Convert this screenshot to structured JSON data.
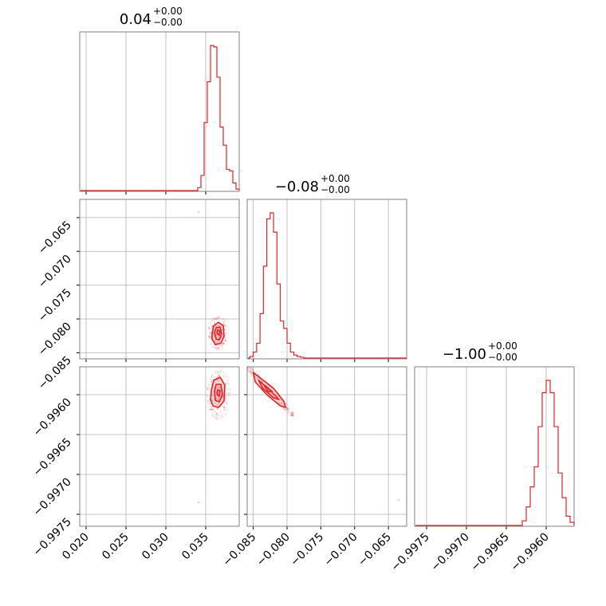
{
  "chart_data": {
    "type": "corner",
    "line_color": "#d62728",
    "fill_color": "#f29a9b",
    "grid": true,
    "parameters": [
      {
        "title": "0.04",
        "err_plus": "+0.00",
        "err_minus": "−0.00",
        "range": [
          0.0192,
          0.0392
        ],
        "ticks": [
          0.02,
          0.025,
          0.03,
          0.035
        ],
        "tick_labels": [
          "0.020",
          "0.025",
          "0.030",
          "0.035"
        ]
      },
      {
        "title": "−0.08",
        "err_plus": "+0.00",
        "err_minus": "−0.00",
        "range": [
          -0.0859,
          -0.0623
        ],
        "ticks": [
          -0.085,
          -0.08,
          -0.075,
          -0.07,
          -0.065
        ],
        "tick_labels": [
          "−0.085",
          "−0.080",
          "−0.075",
          "−0.070",
          "−0.065"
        ]
      },
      {
        "title": "−1.00",
        "err_plus": "+0.00",
        "err_minus": "−0.00",
        "range": [
          -0.99765,
          -0.99565
        ],
        "ticks": [
          -0.9975,
          -0.997,
          -0.9965,
          -0.996
        ],
        "tick_labels": [
          "−0.9975",
          "−0.9970",
          "−0.9965",
          "−0.9960"
        ]
      }
    ],
    "histograms": [
      {
        "param": 0,
        "bin_edges": [
          0.034,
          0.0344,
          0.0348,
          0.0352,
          0.0356,
          0.036,
          0.0364,
          0.0368,
          0.0372,
          0.0376,
          0.038,
          0.0384,
          0.0388,
          0.0392
        ],
        "counts": [
          0.02,
          0.1,
          0.45,
          0.72,
          0.96,
          0.95,
          0.75,
          0.42,
          0.3,
          0.14,
          0.13,
          0.05,
          0.01
        ]
      },
      {
        "param": 1,
        "bin_edges": [
          -0.0855,
          -0.085,
          -0.0845,
          -0.084,
          -0.0835,
          -0.083,
          -0.0825,
          -0.082,
          -0.0815,
          -0.081,
          -0.0805,
          -0.08,
          -0.0795,
          -0.079,
          -0.0785,
          -0.078,
          -0.0775,
          -0.0623
        ],
        "counts": [
          0.01,
          0.04,
          0.1,
          0.3,
          0.62,
          0.94,
          0.98,
          0.85,
          0.5,
          0.25,
          0.2,
          0.1,
          0.04,
          0.02,
          0.01,
          0.005,
          0.0
        ]
      },
      {
        "param": 2,
        "bin_edges": [
          -0.9963,
          -0.99625,
          -0.9962,
          -0.99615,
          -0.9961,
          -0.99605,
          -0.996,
          -0.99595,
          -0.9959,
          -0.99585,
          -0.9958,
          -0.99575,
          -0.9957,
          -0.99565
        ],
        "counts": [
          0.03,
          0.12,
          0.25,
          0.38,
          0.64,
          0.86,
          0.94,
          0.86,
          0.64,
          0.34,
          0.18,
          0.06,
          0.02
        ]
      }
    ],
    "scatter_panels": [
      {
        "x_param": 0,
        "y_param": 1,
        "center": [
          0.0365,
          -0.082
        ],
        "outliers": [
          [
            0.0341,
            -0.0642
          ]
        ],
        "contours": [
          [
            [
              0.0358,
              -0.0822
            ],
            [
              0.036,
              -0.081
            ],
            [
              0.0366,
              -0.0805
            ],
            [
              0.0372,
              -0.081
            ],
            [
              0.0373,
              -0.0826
            ],
            [
              0.0369,
              -0.0836
            ],
            [
              0.0362,
              -0.0838
            ],
            [
              0.0358,
              -0.083
            ]
          ],
          [
            [
              0.0361,
              -0.082
            ],
            [
              0.0363,
              -0.0813
            ],
            [
              0.0368,
              -0.0812
            ],
            [
              0.037,
              -0.0822
            ],
            [
              0.0367,
              -0.0831
            ],
            [
              0.0363,
              -0.083
            ]
          ],
          [
            [
              0.0364,
              -0.0821
            ],
            [
              0.0365,
              -0.0816
            ],
            [
              0.0368,
              -0.0818
            ],
            [
              0.0367,
              -0.0824
            ]
          ]
        ]
      },
      {
        "x_param": 0,
        "y_param": 2,
        "center": [
          0.0366,
          -0.996
        ],
        "outliers": [
          [
            0.0341,
            -0.99735
          ]
        ],
        "contours": [
          [
            [
              0.0357,
              -0.99595
            ],
            [
              0.036,
              -0.99582
            ],
            [
              0.0368,
              -0.99578
            ],
            [
              0.0374,
              -0.99588
            ],
            [
              0.0373,
              -0.99608
            ],
            [
              0.0366,
              -0.99616
            ],
            [
              0.0359,
              -0.99614
            ],
            [
              0.0356,
              -0.99606
            ]
          ],
          [
            [
              0.0361,
              -0.99596
            ],
            [
              0.0363,
              -0.99587
            ],
            [
              0.0369,
              -0.99587
            ],
            [
              0.0371,
              -0.996
            ],
            [
              0.0367,
              -0.99609
            ],
            [
              0.0362,
              -0.99607
            ]
          ],
          [
            [
              0.0364,
              -0.99599
            ],
            [
              0.0365,
              -0.99594
            ],
            [
              0.0368,
              -0.99595
            ],
            [
              0.0367,
              -0.99602
            ]
          ]
        ]
      },
      {
        "x_param": 1,
        "y_param": 2,
        "center": [
          -0.0825,
          -0.99595
        ],
        "outliers": [
          [
            -0.0635,
            -0.99732
          ]
        ],
        "contours": [
          [
            [
              -0.085,
              -0.99572
            ],
            [
              -0.0838,
              -0.9958
            ],
            [
              -0.082,
              -0.99592
            ],
            [
              -0.0805,
              -0.99608
            ],
            [
              -0.0802,
              -0.99616
            ],
            [
              -0.081,
              -0.99614
            ],
            [
              -0.083,
              -0.996
            ],
            [
              -0.0847,
              -0.99584
            ]
          ],
          [
            [
              -0.0842,
              -0.99582
            ],
            [
              -0.0828,
              -0.99592
            ],
            [
              -0.0812,
              -0.99606
            ],
            [
              -0.082,
              -0.99604
            ],
            [
              -0.0836,
              -0.99592
            ]
          ],
          [
            [
              -0.0834,
              -0.99588
            ],
            [
              -0.0822,
              -0.99596
            ],
            [
              -0.0828,
              -0.99596
            ]
          ]
        ]
      }
    ]
  }
}
